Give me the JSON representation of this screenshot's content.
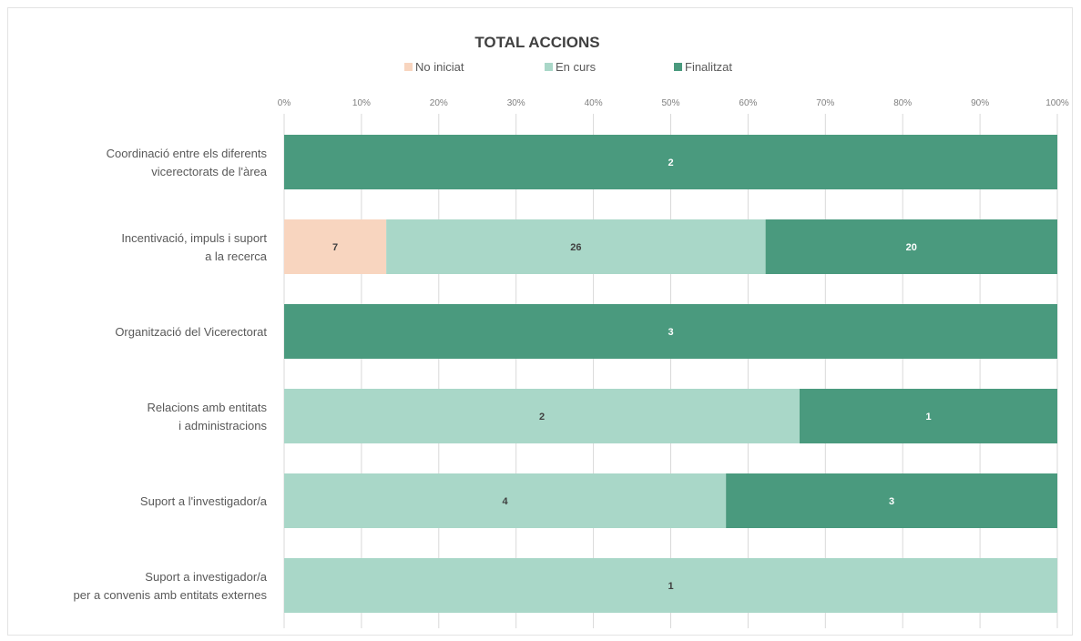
{
  "chart_data": {
    "type": "bar",
    "orientation": "horizontal",
    "stacked": "percent",
    "title": "TOTAL ACCIONS",
    "legend_position": "top",
    "grid": true,
    "xlim": [
      0,
      100
    ],
    "x_ticks": [
      "0%",
      "10%",
      "20%",
      "30%",
      "40%",
      "50%",
      "60%",
      "70%",
      "80%",
      "90%",
      "100%"
    ],
    "categories": [
      [
        "Coordinació entre els diferents",
        "vicerectorats de l'àrea"
      ],
      [
        "Incentivació, impuls i suport",
        "a la recerca"
      ],
      [
        "Organització del Vicerectorat"
      ],
      [
        "Relacions amb entitats",
        "i administracions"
      ],
      [
        "Suport a l'investigador/a"
      ],
      [
        "Suport a investigador/a",
        "per a convenis amb entitats externes"
      ]
    ],
    "series": [
      {
        "name": "No iniciat",
        "color": "#f8d5bf",
        "label_color": "#404040",
        "values": [
          0,
          7,
          0,
          0,
          0,
          0
        ]
      },
      {
        "name": "En curs",
        "color": "#a9d7c8",
        "label_color": "#404040",
        "values": [
          0,
          26,
          0,
          2,
          4,
          1
        ]
      },
      {
        "name": "Finalitzat",
        "color": "#4a9a7e",
        "label_color": "#ffffff",
        "values": [
          2,
          20,
          3,
          1,
          3,
          0
        ]
      }
    ]
  }
}
